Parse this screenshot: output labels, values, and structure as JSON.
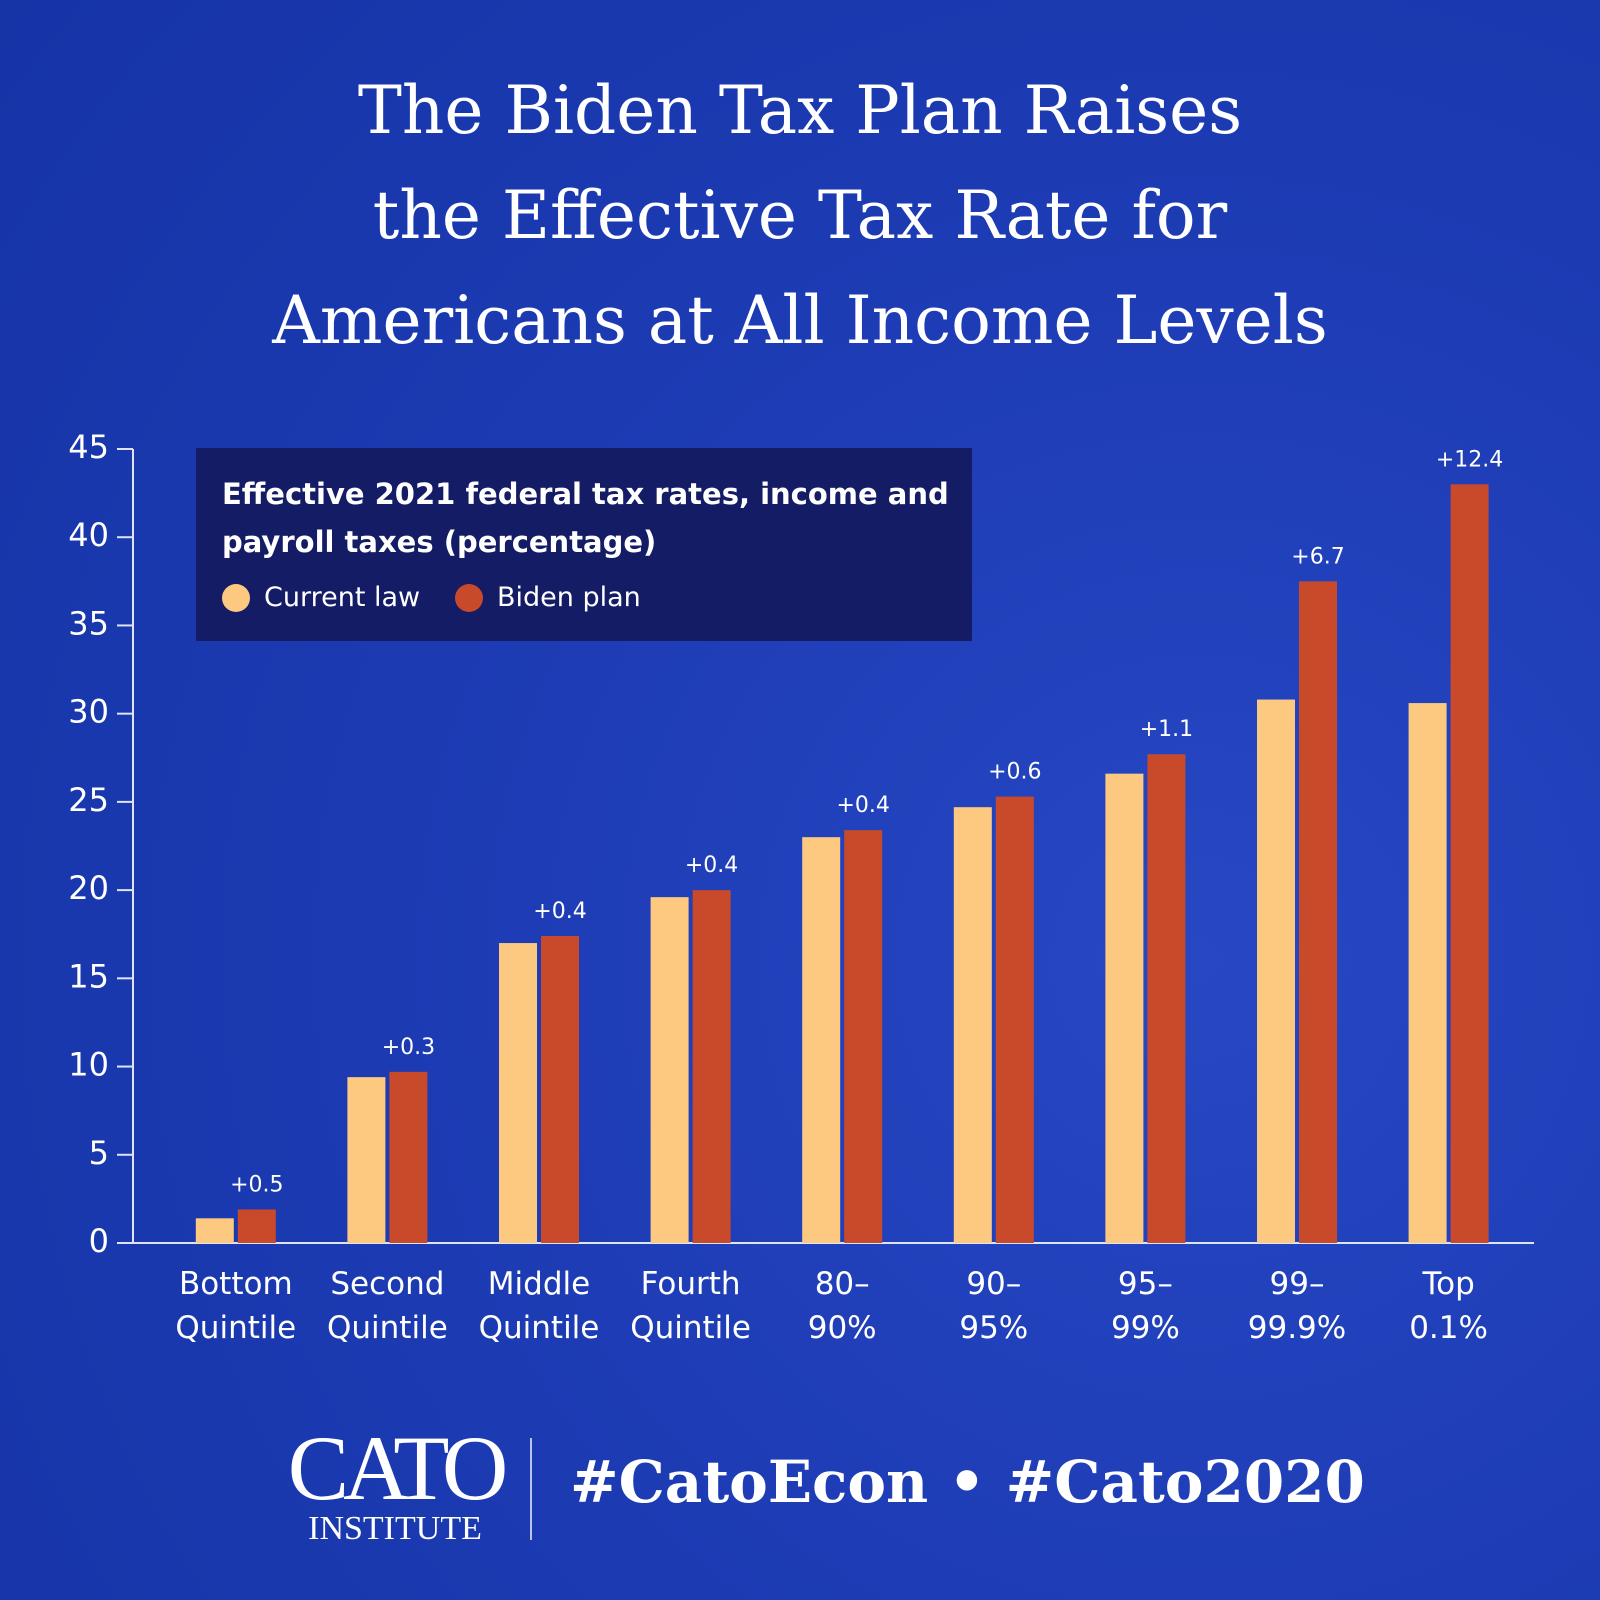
{
  "chart_data": {
    "type": "bar",
    "title": "The Biden Tax Plan Raises the Effective Tax Rate for Americans at All Income Levels",
    "legend_title": "Effective 2021 federal tax rates, income and payroll taxes (percentage)",
    "categories": [
      "Bottom\nQuintile",
      "Second\nQuintile",
      "Middle\nQuintile",
      "Fourth\nQuintile",
      "80–\n90%",
      "90–\n95%",
      "95–\n99%",
      "99–\n99.9%",
      "Top\n0.1%"
    ],
    "series": [
      {
        "name": "Current law",
        "color": "#fdc981",
        "values": [
          1.4,
          9.4,
          17.0,
          19.6,
          23.0,
          24.7,
          26.6,
          30.8,
          30.6
        ]
      },
      {
        "name": "Biden plan",
        "color": "#c9492b",
        "values": [
          1.9,
          9.7,
          17.4,
          20.0,
          23.4,
          25.3,
          27.7,
          37.5,
          43.0
        ],
        "annotations": [
          "+0.5",
          "+0.3",
          "+0.4",
          "+0.4",
          "+0.4",
          "+0.6",
          "+1.1",
          "+6.7",
          "+12.4"
        ]
      }
    ],
    "ylim": [
      0,
      45
    ],
    "yticks": [
      0,
      5,
      10,
      15,
      20,
      25,
      30,
      35,
      40,
      45
    ],
    "grid": false
  },
  "footer": {
    "logo_top": "CATO",
    "logo_bottom": "INSTITUTE",
    "hashtags": "#CatoEcon • #Cato2020"
  }
}
